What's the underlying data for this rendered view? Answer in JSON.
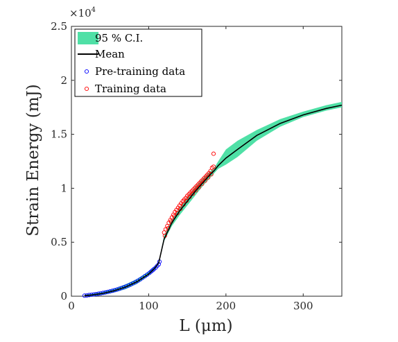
{
  "chart_data": {
    "type": "line",
    "xlabel": "L (μm)",
    "ylabel": "Strain Energy (mJ)",
    "xlim": [
      0,
      350
    ],
    "ylim": [
      0,
      25000
    ],
    "y_multiplier": "×10",
    "y_multiplier_exp": "4",
    "x_ticks": [
      {
        "value": 0,
        "label": "0"
      },
      {
        "value": 100,
        "label": "100"
      },
      {
        "value": 200,
        "label": "200"
      },
      {
        "value": 300,
        "label": "300"
      }
    ],
    "y_ticks": [
      {
        "value": 0,
        "label": "0"
      },
      {
        "value": 5000,
        "label": "0.5"
      },
      {
        "value": 10000,
        "label": "1"
      },
      {
        "value": 15000,
        "label": "1.5"
      },
      {
        "value": 20000,
        "label": "2"
      },
      {
        "value": 25000,
        "label": "2.5"
      }
    ],
    "grid": false,
    "legend_position": "top-left",
    "colors": {
      "ci": "#4fe0a6",
      "mean": "#000000",
      "pretraining": "#0000ff",
      "training": "#ff0000"
    },
    "series": [
      {
        "name": "95 % C.I.",
        "kind": "band",
        "x": [
          17,
          25,
          40,
          55,
          70,
          85,
          100,
          108,
          113,
          120,
          130,
          140,
          150,
          160,
          170,
          180,
          185,
          190,
          200,
          215,
          240,
          270,
          300,
          330,
          350
        ],
        "lower": [
          0,
          20,
          120,
          350,
          650,
          1150,
          1900,
          2450,
          3000,
          5100,
          6500,
          7500,
          8400,
          9300,
          10200,
          11000,
          11400,
          11800,
          12200,
          12900,
          14400,
          15700,
          16600,
          17200,
          17500
        ],
        "upper": [
          150,
          220,
          400,
          700,
          1100,
          1600,
          2300,
          2750,
          3100,
          5600,
          7100,
          8200,
          9200,
          10100,
          10900,
          11600,
          11900,
          12500,
          13600,
          14400,
          15400,
          16400,
          17100,
          17700,
          18000
        ]
      },
      {
        "name": "Mean",
        "kind": "line",
        "x": [
          17,
          25,
          40,
          55,
          70,
          85,
          100,
          108,
          113,
          120,
          130,
          140,
          150,
          160,
          170,
          180,
          185,
          190,
          200,
          215,
          240,
          270,
          300,
          330,
          350
        ],
        "y": [
          50,
          100,
          250,
          500,
          850,
          1350,
          2050,
          2600,
          3100,
          5300,
          6800,
          7900,
          8800,
          9700,
          10500,
          11300,
          11650,
          12100,
          12800,
          13600,
          14900,
          16000,
          16800,
          17400,
          17700
        ]
      },
      {
        "name": "Pre-training data",
        "kind": "scatter",
        "x": [
          17,
          20,
          23,
          26,
          29,
          32,
          35,
          38,
          41,
          44,
          47,
          50,
          53,
          56,
          59,
          62,
          65,
          68,
          71,
          74,
          77,
          80,
          83,
          86,
          89,
          92,
          95,
          98,
          101,
          103,
          105,
          107,
          109,
          111,
          113,
          114
        ],
        "y": [
          50,
          80,
          110,
          140,
          170,
          200,
          230,
          270,
          310,
          350,
          400,
          450,
          500,
          560,
          620,
          690,
          760,
          840,
          920,
          1000,
          1100,
          1200,
          1310,
          1430,
          1560,
          1700,
          1850,
          2000,
          2150,
          2280,
          2400,
          2520,
          2650,
          2800,
          2950,
          3200
        ]
      },
      {
        "name": "Training data",
        "kind": "scatter",
        "x": [
          120,
          122,
          124,
          126,
          128,
          130,
          132,
          134,
          136,
          138,
          140,
          142,
          144,
          146,
          148,
          150,
          152,
          154,
          156,
          158,
          160,
          162,
          164,
          166,
          168,
          170,
          172,
          174,
          176,
          178,
          180,
          182,
          184,
          121,
          125,
          129,
          133,
          137,
          141,
          145,
          149,
          153,
          157,
          161,
          165,
          169,
          173,
          177,
          181,
          184
        ],
        "y": [
          5900,
          6200,
          6500,
          6800,
          7050,
          7300,
          7550,
          7800,
          8000,
          8200,
          8400,
          8600,
          8800,
          8950,
          9100,
          9300,
          9450,
          9600,
          9750,
          9900,
          10050,
          10200,
          10350,
          10500,
          10650,
          10800,
          10950,
          11100,
          11250,
          11400,
          11600,
          11900,
          13200,
          5600,
          6300,
          6900,
          7400,
          7700,
          8100,
          8500,
          8850,
          9200,
          9500,
          9800,
          10100,
          10400,
          10700,
          11000,
          11300,
          12000
        ]
      }
    ]
  }
}
